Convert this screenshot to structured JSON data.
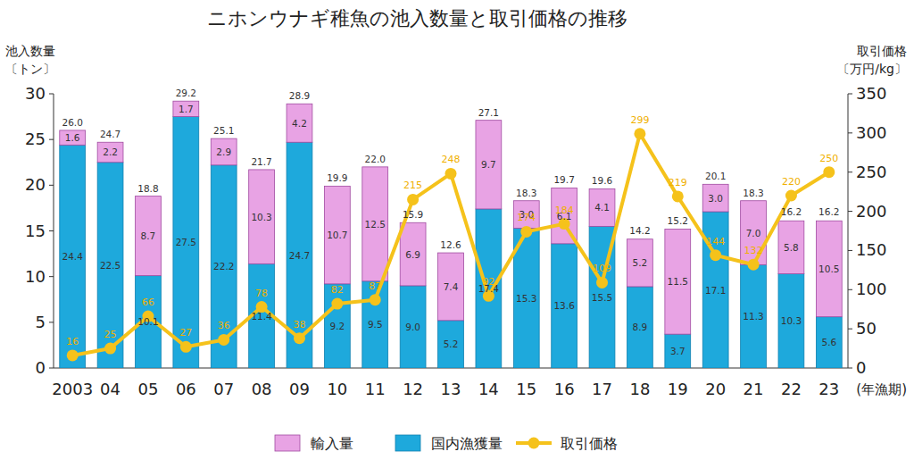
{
  "chart_data": {
    "type": "bar",
    "title": "ニホンウナギ稚魚の池入数量と取引価格の推移",
    "ylabel": "池入数量",
    "ylabel_unit": "〔トン〕",
    "y2label": "取引価格",
    "y2label_unit": "〔万円/kg〕",
    "xlabel": "(年漁期)",
    "categories": [
      "2003",
      "04",
      "05",
      "06",
      "07",
      "08",
      "09",
      "10",
      "11",
      "12",
      "13",
      "14",
      "15",
      "16",
      "17",
      "18",
      "19",
      "20",
      "21",
      "22",
      "23"
    ],
    "stacked": true,
    "data_labels": true,
    "grid": false,
    "legend": "bottom",
    "ylim": [
      0,
      30
    ],
    "yticks": [
      0,
      5,
      10,
      15,
      20,
      25,
      30
    ],
    "y2lim": [
      0,
      350
    ],
    "y2ticks": [
      0,
      50,
      100,
      150,
      200,
      250,
      300,
      350
    ],
    "series": [
      {
        "name": "国内漁獲量",
        "type": "bar",
        "color": "#1ea9dc",
        "values": [
          24.4,
          22.5,
          10.1,
          27.5,
          22.2,
          11.4,
          24.7,
          9.2,
          9.5,
          9.0,
          5.2,
          17.4,
          15.3,
          13.6,
          15.5,
          8.9,
          3.7,
          17.1,
          11.3,
          10.3,
          5.6
        ],
        "value_labels": [
          "24.4",
          "22.5",
          "10.1",
          "27.5",
          "22.2",
          "11.4",
          "24.7",
          "9.2",
          "9.5",
          "9.0",
          "5.2",
          "17.4",
          "15.3",
          "13.6",
          "15.5",
          "8.9",
          "3.7",
          "17.1",
          "11.3",
          "10.3",
          "5.6"
        ]
      },
      {
        "name": "輸入量",
        "type": "bar",
        "color": "#e8a3e4",
        "values": [
          1.6,
          2.2,
          8.7,
          1.7,
          2.9,
          10.3,
          4.2,
          10.7,
          12.5,
          6.9,
          7.4,
          9.7,
          3.0,
          6.1,
          4.1,
          5.2,
          11.5,
          3.0,
          7.0,
          5.8,
          10.5
        ],
        "value_labels": [
          "1.6",
          "2.2",
          "8.7",
          "1.7",
          "2.9",
          "10.3",
          "4.2",
          "10.7",
          "12.5",
          "6.9",
          "7.4",
          "9.7",
          "3.0",
          "6.1",
          "4.1",
          "5.2",
          "11.5",
          "3.0",
          "7.0",
          "5.8",
          "10.5"
        ]
      },
      {
        "name": "取引価格",
        "type": "line",
        "axis": "y2",
        "color": "#f5c21b",
        "marker": "circle",
        "values": [
          16,
          25,
          66,
          27,
          36,
          78,
          38,
          82,
          87,
          215,
          248,
          92,
          174,
          184,
          109,
          299,
          219,
          144,
          132,
          220,
          250
        ]
      }
    ],
    "totals": [
      26.0,
      24.7,
      18.8,
      29.2,
      25.1,
      21.7,
      28.9,
      19.9,
      22.0,
      15.9,
      12.6,
      27.1,
      18.3,
      19.7,
      19.6,
      14.2,
      15.2,
      20.1,
      18.3,
      16.2,
      16.2
    ],
    "total_labels": [
      "26.0",
      "24.7",
      "18.8",
      "29.2",
      "25.1",
      "21.7",
      "28.9",
      "19.9",
      "22.0",
      "15.9",
      "12.6",
      "27.1",
      "18.3",
      "19.7",
      "19.6",
      "14.2",
      "15.2",
      "20.1",
      "18.3",
      "16.2",
      "16.2"
    ]
  }
}
